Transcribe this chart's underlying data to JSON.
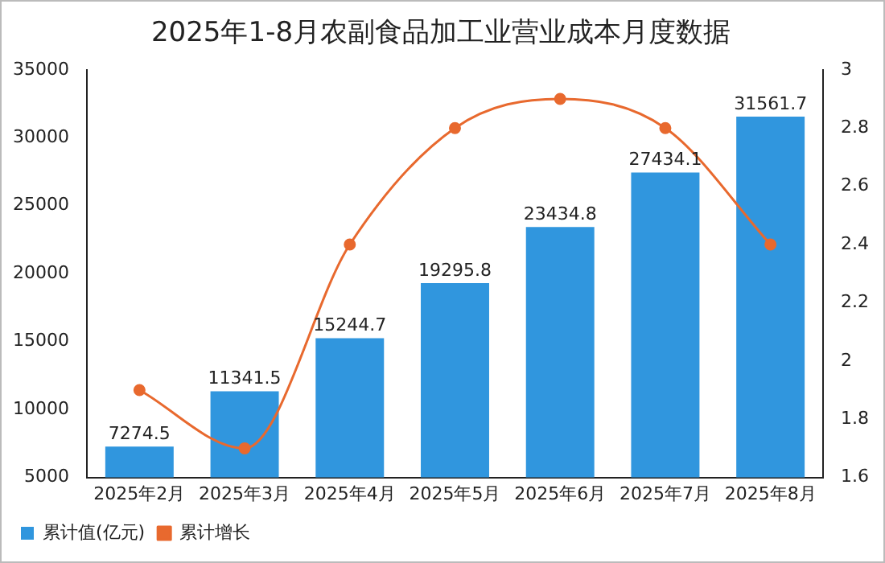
{
  "chart_data": {
    "type": "bar",
    "title": "2025年1-8月农副食品加工业营业成本月度数据",
    "categories": [
      "2025年2月",
      "2025年3月",
      "2025年4月",
      "2025年5月",
      "2025年6月",
      "2025年7月",
      "2025年8月"
    ],
    "series": [
      {
        "name": "累计值(亿元)",
        "color": "#3096de",
        "values": [
          7274.5,
          11341.5,
          15244.7,
          19295.8,
          23434.8,
          27434.1,
          31561.7
        ],
        "value_labels": [
          "7274.5",
          "11341.5",
          "15244.7",
          "19295.8",
          "23434.8",
          "27434.1",
          "31561.7"
        ]
      },
      {
        "name": "累计增长",
        "type": "line",
        "axis": "y2",
        "color": "#e8692e",
        "marker": "circle",
        "values": [
          1.9,
          1.7,
          2.4,
          2.8,
          2.9,
          2.8,
          2.4
        ]
      }
    ],
    "ylim": [
      5000,
      35000
    ],
    "yticks": [
      5000,
      10000,
      15000,
      20000,
      25000,
      30000,
      35000
    ],
    "y2lim": [
      1.6,
      3
    ],
    "y2ticks": [
      1.6,
      1.8,
      2,
      2.2,
      2.4,
      2.6,
      2.8,
      3
    ],
    "grid": false,
    "legend": "bottom left"
  }
}
